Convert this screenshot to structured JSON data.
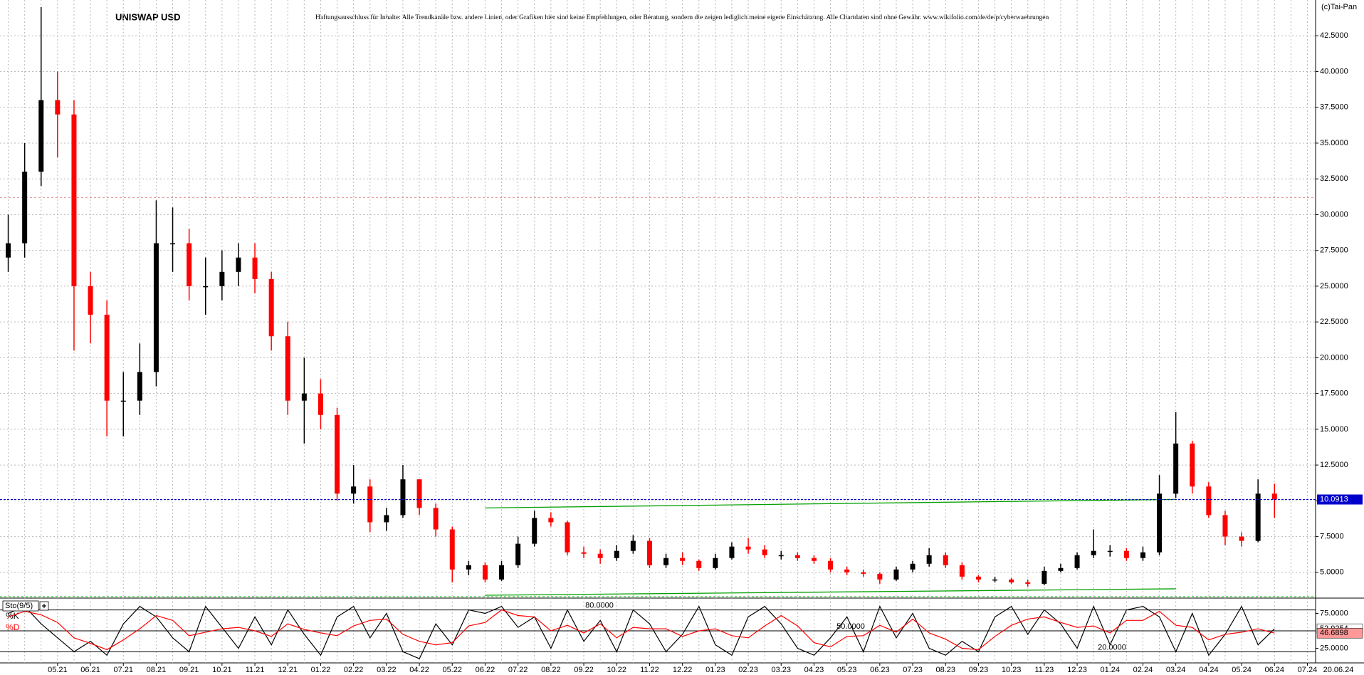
{
  "header": {
    "copyright": "(c)Tai-Pan",
    "disclaimer": "Haftungsausschluss für Inhalte: Alle Trendkanäle bzw. andere Linien, oder Grafiken hier sind keine Empfehlungen, oder Beratung, sondern die zeigen lediglich meine eigene Einschätzung. Alle Chartdaten sind ohne Gewähr.  www.wikifolio.com/de/de/p/cyberwaehrungen"
  },
  "chart_data": [
    {
      "type": "candlestick",
      "title": "UNISWAP USD",
      "categories": [
        null,
        null,
        null,
        "05.21",
        null,
        "06.21",
        null,
        "07.21",
        null,
        "08.21",
        null,
        "09.21",
        null,
        "10.21",
        null,
        "11.21",
        null,
        "12.21",
        null,
        "01.22",
        null,
        "02.22",
        null,
        "03.22",
        null,
        "04.22",
        null,
        "05.22",
        null,
        "06.22",
        null,
        "07.22",
        null,
        "08.22",
        null,
        "09.22",
        null,
        "10.22",
        null,
        "11.22",
        null,
        "12.22",
        null,
        "01.23",
        null,
        "02.23",
        null,
        "03.23",
        null,
        "04.23",
        null,
        "05.23",
        null,
        "06.23",
        null,
        "07.23",
        null,
        "08.23",
        null,
        "09.23",
        null,
        "10.23",
        null,
        "11.23",
        null,
        "12.23",
        null,
        "01.24",
        null,
        "02.24",
        null,
        "03.24",
        null,
        "04.24",
        null,
        "05.24",
        null,
        "06.24",
        null,
        "07.24"
      ],
      "open": [
        27,
        28,
        33,
        38,
        37,
        25,
        23,
        17,
        17,
        19,
        28,
        28,
        25,
        25,
        26,
        27,
        25.5,
        21.5,
        17,
        17.5,
        16,
        10.5,
        11,
        8.5,
        9,
        11.5,
        9.5,
        8,
        5.2,
        5.5,
        4.5,
        5.5,
        7,
        8.8,
        8.5,
        6.4,
        6.3,
        6,
        6.5,
        7.2,
        5.5,
        6,
        5.8,
        5.3,
        6,
        6.8,
        6.6,
        6.2,
        6.2,
        6,
        5.8,
        5.2,
        5,
        4.9,
        4.5,
        5.2,
        5.6,
        6.2,
        5.5,
        4.7,
        4.5,
        4.5,
        4.3,
        4.2,
        5.1,
        5.3,
        6.2,
        6.5,
        6.5,
        6,
        6.4,
        10.5,
        14,
        11,
        9,
        7.5,
        7.2,
        10.5,
        null,
        null
      ],
      "high": [
        30,
        35,
        44.5,
        40,
        38,
        26,
        24,
        19,
        21,
        31,
        30.5,
        29,
        27,
        27.5,
        28,
        28,
        26,
        22.5,
        20,
        18.5,
        16.5,
        12.5,
        11.5,
        9.5,
        12.5,
        11.5,
        9.8,
        8.2,
        5.8,
        5.7,
        5.8,
        7.5,
        9.3,
        9.2,
        8.6,
        6.8,
        6.6,
        6.9,
        7.6,
        7.4,
        6.3,
        6.4,
        5.9,
        6.3,
        7.1,
        7.4,
        6.9,
        6.5,
        6.4,
        6.2,
        6.0,
        5.4,
        5.2,
        5.0,
        5.4,
        5.8,
        6.7,
        6.4,
        5.7,
        4.8,
        4.7,
        4.6,
        4.5,
        5.4,
        5.6,
        6.4,
        8.0,
        6.9,
        6.7,
        6.8,
        11.8,
        16.2,
        14.2,
        11.3,
        9.3,
        7.8,
        11.5,
        11.2,
        null,
        null
      ],
      "low": [
        26,
        27,
        32,
        34,
        20.5,
        21,
        14.5,
        14.5,
        16,
        18,
        26,
        24,
        23,
        24,
        25,
        24.5,
        20.5,
        16,
        14,
        15,
        10,
        9.8,
        7.8,
        7.9,
        8.8,
        9,
        7.5,
        4.3,
        4.8,
        4.3,
        4.4,
        5.3,
        6.8,
        8.2,
        6.2,
        6.0,
        5.6,
        5.8,
        6.3,
        5.3,
        5.3,
        5.5,
        5.1,
        5.2,
        5.9,
        6.3,
        6.0,
        5.9,
        5.8,
        5.6,
        5.0,
        4.8,
        4.7,
        4.2,
        4.4,
        5.0,
        5.4,
        5.3,
        4.5,
        4.3,
        4.3,
        4.2,
        4.0,
        4.1,
        5.0,
        5.2,
        6.0,
        6.1,
        5.8,
        5.8,
        6.2,
        10.2,
        10.5,
        8.8,
        6.9,
        6.8,
        7.1,
        8.8,
        null,
        null
      ],
      "close": [
        28,
        33,
        38,
        37,
        25,
        23,
        17,
        17,
        19,
        28,
        28,
        25,
        25,
        26,
        27,
        25.5,
        21.5,
        17,
        17.5,
        16,
        10.5,
        11,
        8.5,
        9,
        11.5,
        9.5,
        8,
        5.2,
        5.5,
        4.5,
        5.5,
        7,
        8.8,
        8.5,
        6.4,
        6.3,
        6,
        6.5,
        7.2,
        5.5,
        6,
        5.8,
        5.3,
        6,
        6.8,
        6.6,
        6.2,
        6.2,
        6,
        5.8,
        5.2,
        5,
        4.9,
        4.5,
        5.2,
        5.6,
        6.2,
        5.5,
        4.7,
        4.5,
        4.5,
        4.3,
        4.2,
        5.1,
        5.3,
        6.2,
        6.5,
        6.5,
        6,
        6.4,
        10.5,
        14,
        11,
        9,
        7.5,
        7.2,
        10.5,
        10.0913,
        null,
        null
      ],
      "up_color": "#000000",
      "down_color": "#ff0000",
      "last_color": "#0000cc",
      "ylim": [
        3.2,
        45
      ],
      "yticks": [
        {
          "value": 5,
          "label": "5.0000"
        },
        {
          "value": 7.5,
          "label": "7.5000"
        },
        {
          "value": 10,
          "label": "10.0000"
        },
        {
          "value": 12.5,
          "label": "12.5000"
        },
        {
          "value": 15,
          "label": "15.0000"
        },
        {
          "value": 17.5,
          "label": "17.5000"
        },
        {
          "value": 20,
          "label": "20.0000"
        },
        {
          "value": 22.5,
          "label": "22.5000"
        },
        {
          "value": 25,
          "label": "25.0000"
        },
        {
          "value": 27.5,
          "label": "27.5000"
        },
        {
          "value": 30,
          "label": "30.0000"
        },
        {
          "value": 32.5,
          "label": "32.5000"
        },
        {
          "value": 35,
          "label": "35.0000"
        },
        {
          "value": 37.5,
          "label": "37.5000"
        },
        {
          "value": 40,
          "label": "40.0000"
        },
        {
          "value": 42.5,
          "label": "42.5000"
        }
      ],
      "grid": true,
      "hlines": [
        {
          "value": 31.2,
          "color": "#e09090"
        },
        {
          "value": 3.3,
          "color": "#00c000"
        }
      ],
      "trendlines": [
        {
          "x": [
            "06.22",
            "03.24"
          ],
          "values": [
            9.5,
            10.1
          ],
          "color": "#00a000"
        },
        {
          "x": [
            "06.22",
            "03.24"
          ],
          "values": [
            3.4,
            3.85
          ],
          "color": "#00a000"
        }
      ],
      "last_date": "20.06.24"
    },
    {
      "type": "line",
      "title": "Sto(9/5)",
      "series": [
        {
          "name": "%K",
          "color": "#000000",
          "values": [
            75,
            85,
            60,
            40,
            20,
            35,
            15,
            60,
            85,
            70,
            40,
            20,
            85,
            55,
            25,
            70,
            30,
            80,
            45,
            15,
            70,
            85,
            40,
            75,
            20,
            10,
            60,
            30,
            80,
            75,
            85,
            55,
            70,
            25,
            80,
            35,
            65,
            20,
            80,
            60,
            20,
            45,
            85,
            30,
            15,
            70,
            85,
            60,
            25,
            15,
            40,
            70,
            20,
            85,
            40,
            75,
            25,
            15,
            35,
            20,
            70,
            85,
            45,
            80,
            60,
            25,
            85,
            30,
            80,
            85,
            70,
            20,
            75,
            15,
            45,
            85,
            30,
            52.9254,
            null,
            null
          ]
        },
        {
          "name": "%D",
          "color": "#ff0000",
          "values": [
            70,
            78,
            73,
            62,
            40,
            32,
            23,
            37,
            53,
            72,
            65,
            43,
            48,
            53,
            55,
            50,
            42,
            60,
            52,
            47,
            43,
            57,
            65,
            67,
            45,
            35,
            30,
            33,
            57,
            62,
            80,
            72,
            70,
            50,
            58,
            47,
            60,
            40,
            55,
            53,
            53,
            42,
            50,
            53,
            43,
            40,
            57,
            72,
            57,
            33,
            27,
            42,
            43,
            58,
            48,
            67,
            47,
            38,
            25,
            23,
            42,
            58,
            67,
            70,
            62,
            55,
            57,
            47,
            65,
            65,
            78,
            58,
            55,
            37,
            45,
            48,
            53,
            46.6898,
            null,
            null
          ]
        }
      ],
      "ylim": [
        4,
        97
      ],
      "yticks": [
        {
          "value": 75,
          "label": "75.0000"
        },
        {
          "value": 25,
          "label": "25.0000"
        }
      ],
      "levels": [
        {
          "value": 80,
          "label": "80.0000"
        },
        {
          "value": 50,
          "label": "50.0000"
        },
        {
          "value": 20,
          "label": "20.0000"
        }
      ]
    }
  ]
}
